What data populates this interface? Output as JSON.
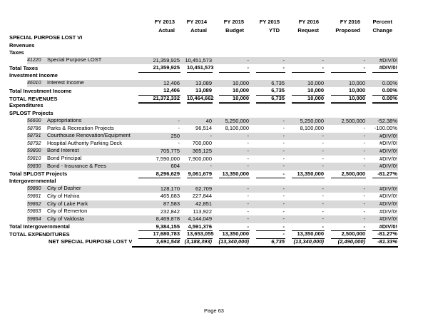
{
  "page": {
    "footer": "Page 63"
  },
  "colors": {
    "stripe_gray": "#d9d9d9",
    "text": "#000000"
  },
  "table": {
    "columns": [
      {
        "line1": "FY 2013",
        "line2": "Actual"
      },
      {
        "line1": "FY 2014",
        "line2": "Actual"
      },
      {
        "line1": "FY 2015",
        "line2": "Budget"
      },
      {
        "line1": "FY 2015",
        "line2": "YTD"
      },
      {
        "line1": "FY 2016",
        "line2": "Request"
      },
      {
        "line1": "FY 2016",
        "line2": "Proposed"
      },
      {
        "line1": "Percent",
        "line2": "Change"
      }
    ],
    "rows": [
      {
        "type": "section",
        "label": "SPECIAL PURPOSE LOST VI"
      },
      {
        "type": "section",
        "label": "Revenues"
      },
      {
        "type": "section",
        "label": "Taxes"
      },
      {
        "type": "detail",
        "shaded": true,
        "acct": "41220",
        "label": "Special Purpose LOST",
        "values": [
          "21,359,925",
          "10,451,573",
          "-",
          "-",
          "-",
          "-",
          "#DIV/0!"
        ]
      },
      {
        "type": "total",
        "label": "Total Taxes",
        "values": [
          "21,359,925",
          "10,451,573",
          "-",
          "-",
          "-",
          "-",
          "#DIV/0!"
        ]
      },
      {
        "type": "section",
        "label": "Investment Income"
      },
      {
        "type": "detail",
        "shaded": true,
        "acct": "46010",
        "label": "Interest Income",
        "values": [
          "12,406",
          "13,089",
          "10,000",
          "6,735",
          "10,000",
          "10,000",
          "0.00%"
        ]
      },
      {
        "type": "total",
        "label": "Total Investment Income",
        "values": [
          "12,406",
          "13,089",
          "10,000",
          "6,735",
          "10,000",
          "10,000",
          "0.00%"
        ]
      },
      {
        "type": "grand",
        "label": "TOTAL REVENUES",
        "values": [
          "21,372,332",
          "10,464,662",
          "10,000",
          "6,735",
          "10,000",
          "10,000",
          "0.00%"
        ]
      },
      {
        "type": "section",
        "label": "Expenditures"
      },
      {
        "type": "section",
        "label": "SPLOST Projects"
      },
      {
        "type": "detail",
        "shaded": true,
        "acct": "56600",
        "label": "Appropriations",
        "values": [
          "-",
          "40",
          "5,250,000",
          "-",
          "5,250,000",
          "2,500,000",
          "-52.38%"
        ]
      },
      {
        "type": "detail",
        "shaded": false,
        "acct": "58786",
        "label": "Parks & Recreation Projects",
        "values": [
          "-",
          "96,514",
          "8,100,000",
          "-",
          "8,100,000",
          "-",
          "-100.00%"
        ]
      },
      {
        "type": "detail",
        "shaded": true,
        "acct": "58791",
        "label": "Courthouse Renovation/Equipment",
        "values": [
          "250",
          "-",
          "-",
          "-",
          "-",
          "-",
          "#DIV/0!"
        ]
      },
      {
        "type": "detail",
        "shaded": false,
        "acct": "58792",
        "label": "Hospital Authority Parking Deck",
        "values": [
          "-",
          "700,000",
          "-",
          "-",
          "-",
          "-",
          "#DIV/0!"
        ]
      },
      {
        "type": "detail",
        "shaded": true,
        "acct": "59800",
        "label": "Bond Interest",
        "values": [
          "705,775",
          "365,125",
          "-",
          "-",
          "-",
          "-",
          "#DIV/0!"
        ]
      },
      {
        "type": "detail",
        "shaded": false,
        "acct": "59810",
        "label": "Bond Principal",
        "values": [
          "7,590,000",
          "7,900,000",
          "-",
          "-",
          "-",
          "-",
          "#DIV/0!"
        ]
      },
      {
        "type": "detail",
        "shaded": true,
        "acct": "59830",
        "label": "Bond - Insurance & Fees",
        "values": [
          "604",
          "-",
          "-",
          "-",
          "-",
          "-",
          "#DIV/0!"
        ]
      },
      {
        "type": "total",
        "label": "Total SPLOST Projects",
        "values": [
          "8,296,629",
          "9,061,679",
          "13,350,000",
          "-",
          "13,350,000",
          "2,500,000",
          "-81.27%"
        ]
      },
      {
        "type": "section",
        "label": "Intergovernmental"
      },
      {
        "type": "detail",
        "shaded": true,
        "acct": "59860",
        "label": "City of Dasher",
        "values": [
          "128,170",
          "62,709",
          "-",
          "-",
          "-",
          "-",
          "#DIV/0!"
        ]
      },
      {
        "type": "detail",
        "shaded": false,
        "acct": "59861",
        "label": "City of Hahira",
        "values": [
          "465,683",
          "227,844",
          "-",
          "-",
          "-",
          "-",
          "#DIV/0!"
        ]
      },
      {
        "type": "detail",
        "shaded": true,
        "acct": "59862",
        "label": "City of Lake Park",
        "values": [
          "87,583",
          "42,851",
          "-",
          "-",
          "-",
          "-",
          "#DIV/0!"
        ]
      },
      {
        "type": "detail",
        "shaded": false,
        "acct": "59863",
        "label": "City of Remerton",
        "values": [
          "232,842",
          "113,922",
          "-",
          "-",
          "-",
          "-",
          "#DIV/0!"
        ]
      },
      {
        "type": "detail",
        "shaded": true,
        "acct": "59864",
        "label": "City of Valdosta",
        "values": [
          "8,469,878",
          "4,144,049",
          "-",
          "-",
          "-",
          "-",
          "#DIV/0!"
        ]
      },
      {
        "type": "total",
        "label": "Total Intergovernmental",
        "values": [
          "9,384,155",
          "4,591,376",
          "-",
          "-",
          "-",
          "-",
          "#DIV/0!"
        ]
      },
      {
        "type": "total",
        "label": "TOTAL EXPENDITURES",
        "values": [
          "17,680,783",
          "13,653,055",
          "13,350,000",
          "-",
          "13,350,000",
          "2,500,000",
          "-81.27%"
        ]
      },
      {
        "type": "net",
        "label": "NET SPECIAL PURPOSE LOST VI",
        "values": [
          "3,691,548",
          "(3,188,393)",
          "(13,340,000)",
          "6,735",
          "(13,340,000)",
          "(2,490,000)",
          "-81.33%"
        ]
      }
    ]
  }
}
